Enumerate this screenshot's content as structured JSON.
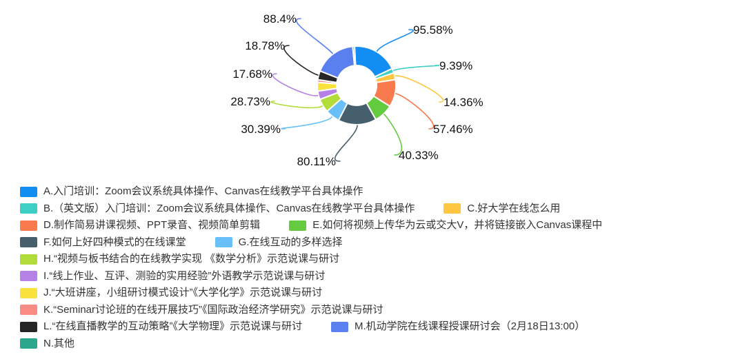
{
  "chart_data": {
    "type": "pie",
    "subtype": "donut",
    "title": "",
    "legend_position": "bottom-left",
    "label_format": "percent",
    "direction": "clockwise-from-top",
    "slices": [
      {
        "letter": "A",
        "legend_label": "A.入门培训：Zoom会议系统具体操作、Canvas在线教学平台具体操作",
        "color": "#128DF2",
        "value": 95.58,
        "pct_label": "95.58%",
        "estimated": false
      },
      {
        "letter": "B",
        "legend_label": "B.（英文版）入门培训：Zoom会议系统具体操作、Canvas在线教学平台具体操作",
        "color": "#3DCEC4",
        "value": 9.39,
        "pct_label": "9.39%",
        "estimated": false
      },
      {
        "letter": "C",
        "legend_label": "C.好大学在线怎么用",
        "color": "#FFC640",
        "value": 14.36,
        "pct_label": "14.36%",
        "estimated": false
      },
      {
        "letter": "D",
        "legend_label": "D.制作简易讲课视频、PPT录音、视频简单剪辑",
        "color": "#F97B4D",
        "value": 57.46,
        "pct_label": "57.46%",
        "estimated": false
      },
      {
        "letter": "E",
        "legend_label": "E.如何将视频上传华为云或交大V，并将链接嵌入Canvas课程中",
        "color": "#65CB3E",
        "value": 40.33,
        "pct_label": "40.33%",
        "estimated": false
      },
      {
        "letter": "F",
        "legend_label": "F.如何上好四种模式的在线课堂",
        "color": "#465F6C",
        "value": 80.11,
        "pct_label": "80.11%",
        "estimated": false
      },
      {
        "letter": "G",
        "legend_label": "G.在线互动的多样选择",
        "color": "#69C0F9",
        "value": 30.39,
        "pct_label": "30.39%",
        "estimated": false
      },
      {
        "letter": "H",
        "legend_label": "H.“视频与板书结合的在线教学实现 《数学分析》示范说课与研讨",
        "color": "#B2DC3A",
        "value": 28.73,
        "pct_label": "28.73%",
        "estimated": false
      },
      {
        "letter": "I",
        "legend_label": "I.“线上作业、互评、测验的实用经验”外语教学示范说课与研讨",
        "color": "#B581E6",
        "value": 17.68,
        "pct_label": "17.68%",
        "estimated": false
      },
      {
        "letter": "J",
        "legend_label": "J.“大班讲座，小组研讨模式设计”《大学化学》示范说课与研讨",
        "color": "#FAE23C",
        "value": 18.2,
        "pct_label": null,
        "estimated": true
      },
      {
        "letter": "K",
        "legend_label": "K.“Seminar讨论班的在线开展技巧”《国际政治经济学研究》示范说课与研讨",
        "color": "#F98B85",
        "value": 5.5,
        "pct_label": null,
        "estimated": true
      },
      {
        "letter": "L",
        "legend_label": "L.“在线直播教学的互动策略”《大学物理》示范说课与研讨",
        "color": "#262626",
        "value": 18.78,
        "pct_label": "18.78%",
        "estimated": false
      },
      {
        "letter": "M",
        "legend_label": "M.机动学院在线课程授课研讨会（2月18日13:00）",
        "color": "#5A80F0",
        "value": 88.4,
        "pct_label": "88.4%",
        "estimated": false
      },
      {
        "letter": "N",
        "legend_label": "N.其他",
        "color": "#2BA78E",
        "value": 3.9,
        "pct_label": null,
        "estimated": true
      }
    ]
  }
}
